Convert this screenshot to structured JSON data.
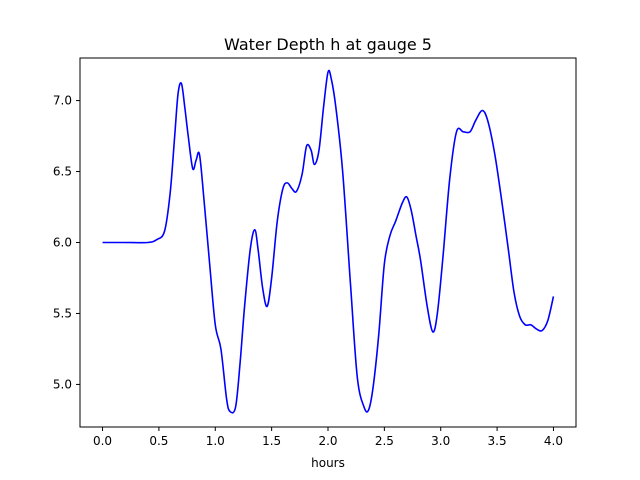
{
  "chart_data": {
    "type": "line",
    "title": "Water Depth h at gauge 5",
    "xlabel": "hours",
    "ylabel": "",
    "xlim": [
      -0.2,
      4.2
    ],
    "ylim": [
      4.7,
      7.3
    ],
    "xticks": [
      0.0,
      0.5,
      1.0,
      1.5,
      2.0,
      2.5,
      3.0,
      3.5,
      4.0
    ],
    "xtick_labels": [
      "0.0",
      "0.5",
      "1.0",
      "1.5",
      "2.0",
      "2.5",
      "3.0",
      "3.5",
      "4.0"
    ],
    "yticks": [
      5.0,
      5.5,
      6.0,
      6.5,
      7.0
    ],
    "ytick_labels": [
      "5.0",
      "5.5",
      "6.0",
      "6.5",
      "7.0"
    ],
    "grid": false,
    "series": [
      {
        "color": "#0000ff",
        "x": [
          0.0,
          0.2,
          0.4,
          0.48,
          0.55,
          0.6,
          0.64,
          0.67,
          0.7,
          0.73,
          0.76,
          0.8,
          0.83,
          0.86,
          0.9,
          0.95,
          1.0,
          1.05,
          1.1,
          1.13,
          1.18,
          1.22,
          1.26,
          1.31,
          1.35,
          1.38,
          1.42,
          1.46,
          1.5,
          1.55,
          1.6,
          1.64,
          1.68,
          1.72,
          1.77,
          1.81,
          1.85,
          1.88,
          1.92,
          1.96,
          2.0,
          2.03,
          2.07,
          2.13,
          2.2,
          2.26,
          2.32,
          2.36,
          2.4,
          2.45,
          2.5,
          2.55,
          2.6,
          2.66,
          2.7,
          2.74,
          2.78,
          2.82,
          2.88,
          2.93,
          2.97,
          3.02,
          3.08,
          3.14,
          3.2,
          3.26,
          3.31,
          3.37,
          3.42,
          3.48,
          3.54,
          3.6,
          3.65,
          3.7,
          3.75,
          3.8,
          3.85,
          3.9,
          3.95,
          4.0
        ],
        "y": [
          6.0,
          6.0,
          6.0,
          6.02,
          6.08,
          6.35,
          6.75,
          7.05,
          7.12,
          6.95,
          6.75,
          6.52,
          6.58,
          6.62,
          6.3,
          5.85,
          5.42,
          5.25,
          4.9,
          4.81,
          4.84,
          5.15,
          5.55,
          5.95,
          6.09,
          5.95,
          5.68,
          5.55,
          5.75,
          6.15,
          6.38,
          6.42,
          6.38,
          6.36,
          6.48,
          6.68,
          6.65,
          6.55,
          6.65,
          6.95,
          7.2,
          7.15,
          6.95,
          6.5,
          5.7,
          5.05,
          4.84,
          4.82,
          4.98,
          5.35,
          5.85,
          6.05,
          6.15,
          6.28,
          6.32,
          6.22,
          6.05,
          5.88,
          5.55,
          5.37,
          5.5,
          5.9,
          6.45,
          6.78,
          6.78,
          6.78,
          6.86,
          6.93,
          6.85,
          6.62,
          6.3,
          5.95,
          5.65,
          5.48,
          5.42,
          5.42,
          5.39,
          5.38,
          5.45,
          5.62
        ]
      }
    ]
  }
}
